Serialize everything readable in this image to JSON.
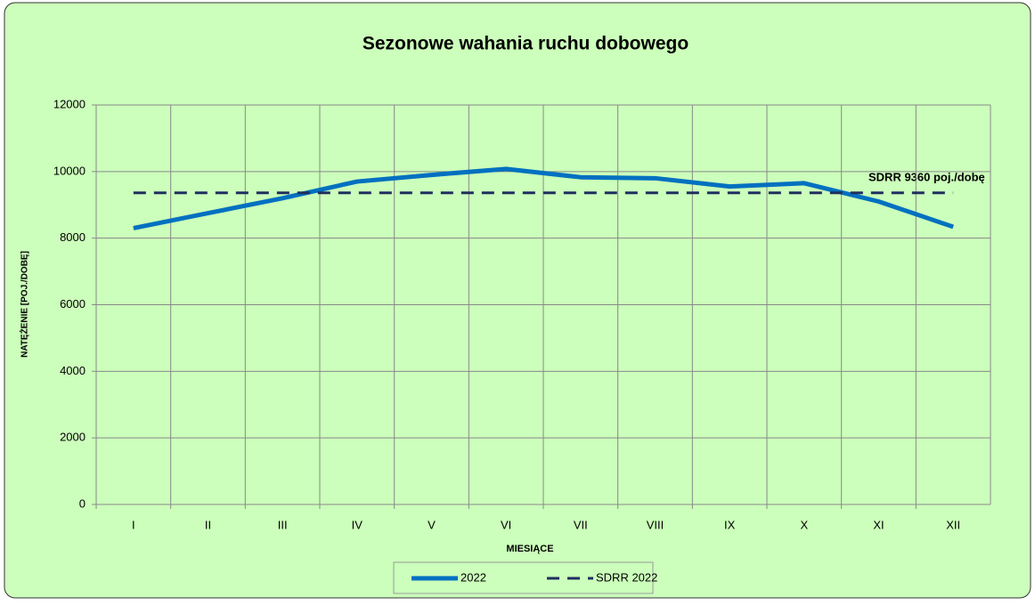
{
  "chart_data": {
    "type": "line",
    "title": "Sezonowe wahania ruchu dobowego",
    "x_label": "MIESIĄCE",
    "y_label": "NATĘŻENIE [POJ./DOBĘ]",
    "annotation": "SDRR 9360  poj./dobę",
    "categories": [
      "I",
      "II",
      "III",
      "IV",
      "V",
      "VI",
      "VII",
      "VIII",
      "IX",
      "X",
      "XI",
      "XII"
    ],
    "series": [
      {
        "name": "2022",
        "color": "#0070c0",
        "dashed": false,
        "values": [
          8300,
          8750,
          9200,
          9700,
          9900,
          10080,
          9830,
          9800,
          9550,
          9650,
          9100,
          8340
        ]
      },
      {
        "name": "SDRR 2022",
        "color": "#1f2f5f",
        "dashed": true,
        "values": [
          9360,
          9360,
          9360,
          9360,
          9360,
          9360,
          9360,
          9360,
          9360,
          9360,
          9360,
          9360
        ]
      }
    ],
    "ylim": [
      0,
      12000
    ],
    "yticks": [
      0,
      2000,
      4000,
      6000,
      8000,
      10000,
      12000
    ],
    "grid": true,
    "legend": "bottom"
  }
}
